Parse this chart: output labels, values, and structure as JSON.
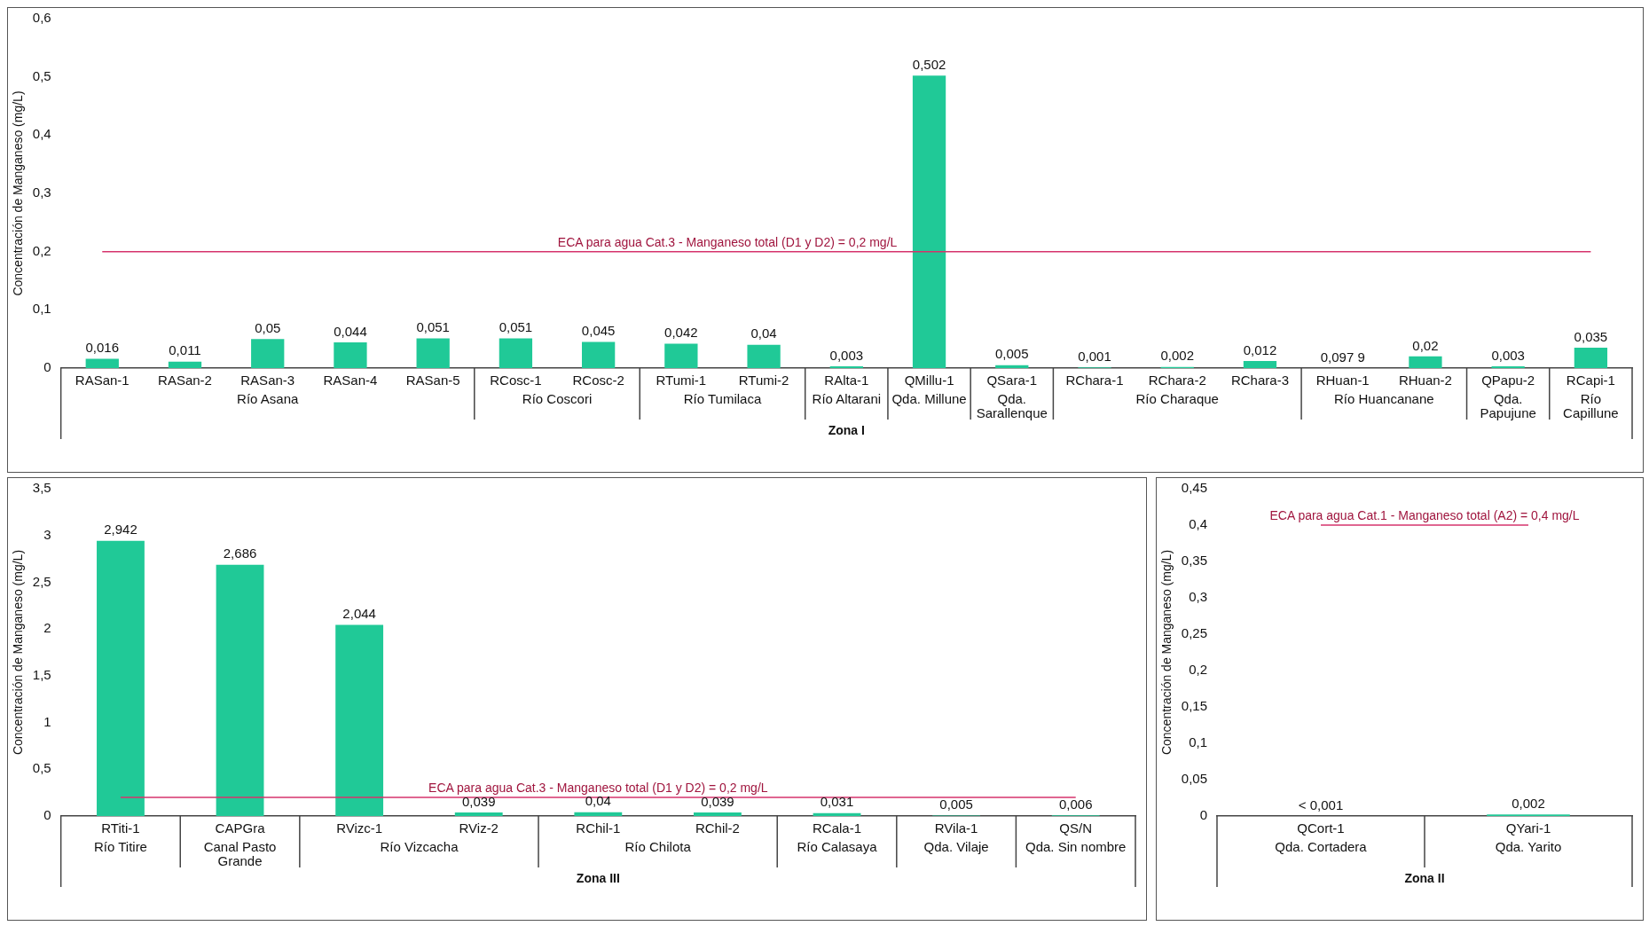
{
  "chart_data": [
    {
      "type": "bar",
      "ylabel": "Concentración de Manganeso (mg/L)",
      "xlabel": "Zona I",
      "categories": [
        "RASan-1",
        "RASan-2",
        "RASan-3",
        "RASan-4",
        "RASan-5",
        "RCosc-1",
        "RCosc-2",
        "RTumi-1",
        "RTumi-2",
        "RAlta-1",
        "QMillu-1",
        "QSara-1",
        "RChara-1",
        "RChara-2",
        "RChara-3",
        "RHuan-1",
        "RHuan-2",
        "QPapu-2",
        "RCapi-1"
      ],
      "series": [
        {
          "color": "#20c997",
          "values": [
            0.016,
            0.011,
            0.05,
            0.044,
            0.051,
            0.051,
            0.045,
            0.042,
            0.04,
            0.003,
            0.502,
            0.005,
            0.001,
            0.002,
            0.012,
            null,
            0.02,
            0.003,
            0.035
          ],
          "value_labels": [
            "0,016",
            "0,011",
            "0,05",
            "0,044",
            "0,051",
            "0,051",
            "0,045",
            "0,042",
            "0,04",
            "0,003",
            "0,502",
            "0,005",
            "0,001",
            "0,002",
            "0,012",
            "0,097 9",
            "0,02",
            "0,003",
            "0,035"
          ]
        }
      ],
      "ylim": [
        0,
        0.6
      ],
      "yticks": [
        0,
        {
          "value": 0.1,
          "label": "0,1"
        },
        {
          "value": 0.2,
          "label": "0,2"
        },
        {
          "value": 0.3,
          "label": "0,3"
        },
        {
          "value": 0.4,
          "label": "0,4"
        },
        {
          "value": 0.5,
          "label": "0,5"
        },
        {
          "value": 0.6,
          "label": "0,6"
        }
      ],
      "grid": false,
      "legend": false,
      "ref_lines": [
        {
          "axis": "y",
          "value": 0.2,
          "label": "ECA para agua Cat.3 - Manganeso total (D1 y D2) = 0,2 mg/L",
          "color": "#d6336c"
        }
      ],
      "annotations": [
        "Río Asana",
        "Río Coscori",
        "Río Tumilaca",
        "Río Altarani",
        "Qda. Millune",
        "Qda. Sarallenque",
        "Río Charaque",
        "Río Huancanane",
        "Qda. Papujune",
        "Río Capillune"
      ]
    },
    {
      "type": "bar",
      "ylabel": "Concentración de Manganeso (mg/L)",
      "xlabel": "Zona III",
      "categories": [
        "RTiti-1",
        "CAPGra",
        "RVizc-1",
        "RViz-2",
        "RChil-1",
        "RChil-2",
        "RCala-1",
        "RVila-1",
        "QS/N"
      ],
      "series": [
        {
          "color": "#20c997",
          "values": [
            2.942,
            2.686,
            2.044,
            0.039,
            0.04,
            0.039,
            0.031,
            0.005,
            0.006
          ],
          "value_labels": [
            "2,942",
            "2,686",
            "2,044",
            "0,039",
            "0,04",
            "0,039",
            "0,031",
            "0,005",
            "0,006"
          ]
        }
      ],
      "ylim": [
        0,
        3.5
      ],
      "yticks": [
        0,
        {
          "value": 0.5,
          "label": "0,5"
        },
        1,
        {
          "value": 1.5,
          "label": "1,5"
        },
        2,
        {
          "value": 2.5,
          "label": "2,5"
        },
        3,
        {
          "value": 3.5,
          "label": "3,5"
        }
      ],
      "grid": false,
      "legend": false,
      "ref_lines": [
        {
          "axis": "y",
          "value": 0.2,
          "label": "ECA para agua Cat.3 - Manganeso total (D1 y D2) = 0,2 mg/L",
          "color": "#d6336c"
        }
      ],
      "annotations": [
        "Río Titire",
        "Canal Pasto Grande",
        "Río Vizcacha",
        "Río Chilota",
        "Río Calasaya",
        "Qda. Vilaje",
        "Qda. Sin nombre"
      ]
    },
    {
      "type": "bar",
      "ylabel": "Concentración de Manganeso (mg/L)",
      "xlabel": "Zona II",
      "categories": [
        "QCort-1",
        "QYari-1"
      ],
      "series": [
        {
          "color": "#20c997",
          "values": [
            null,
            0.002
          ],
          "value_labels": [
            "< 0,001",
            "0,002"
          ]
        }
      ],
      "ylim": [
        0,
        0.45
      ],
      "yticks": [
        0,
        {
          "value": 0.05,
          "label": "0,05"
        },
        {
          "value": 0.1,
          "label": "0,1"
        },
        {
          "value": 0.15,
          "label": "0,15"
        },
        {
          "value": 0.2,
          "label": "0,2"
        },
        {
          "value": 0.25,
          "label": "0,25"
        },
        {
          "value": 0.3,
          "label": "0,3"
        },
        {
          "value": 0.35,
          "label": "0,35"
        },
        {
          "value": 0.4,
          "label": "0,4"
        },
        {
          "value": 0.45,
          "label": "0,45"
        }
      ],
      "grid": false,
      "legend": false,
      "ref_lines": [
        {
          "axis": "y",
          "value": 0.4,
          "label": "ECA para agua Cat.1 - Manganeso total (A2) = 0,4 mg/L",
          "color": "#d6336c"
        }
      ],
      "annotations": [
        "Qda. Cortadera",
        "Qda. Yarito"
      ]
    }
  ]
}
